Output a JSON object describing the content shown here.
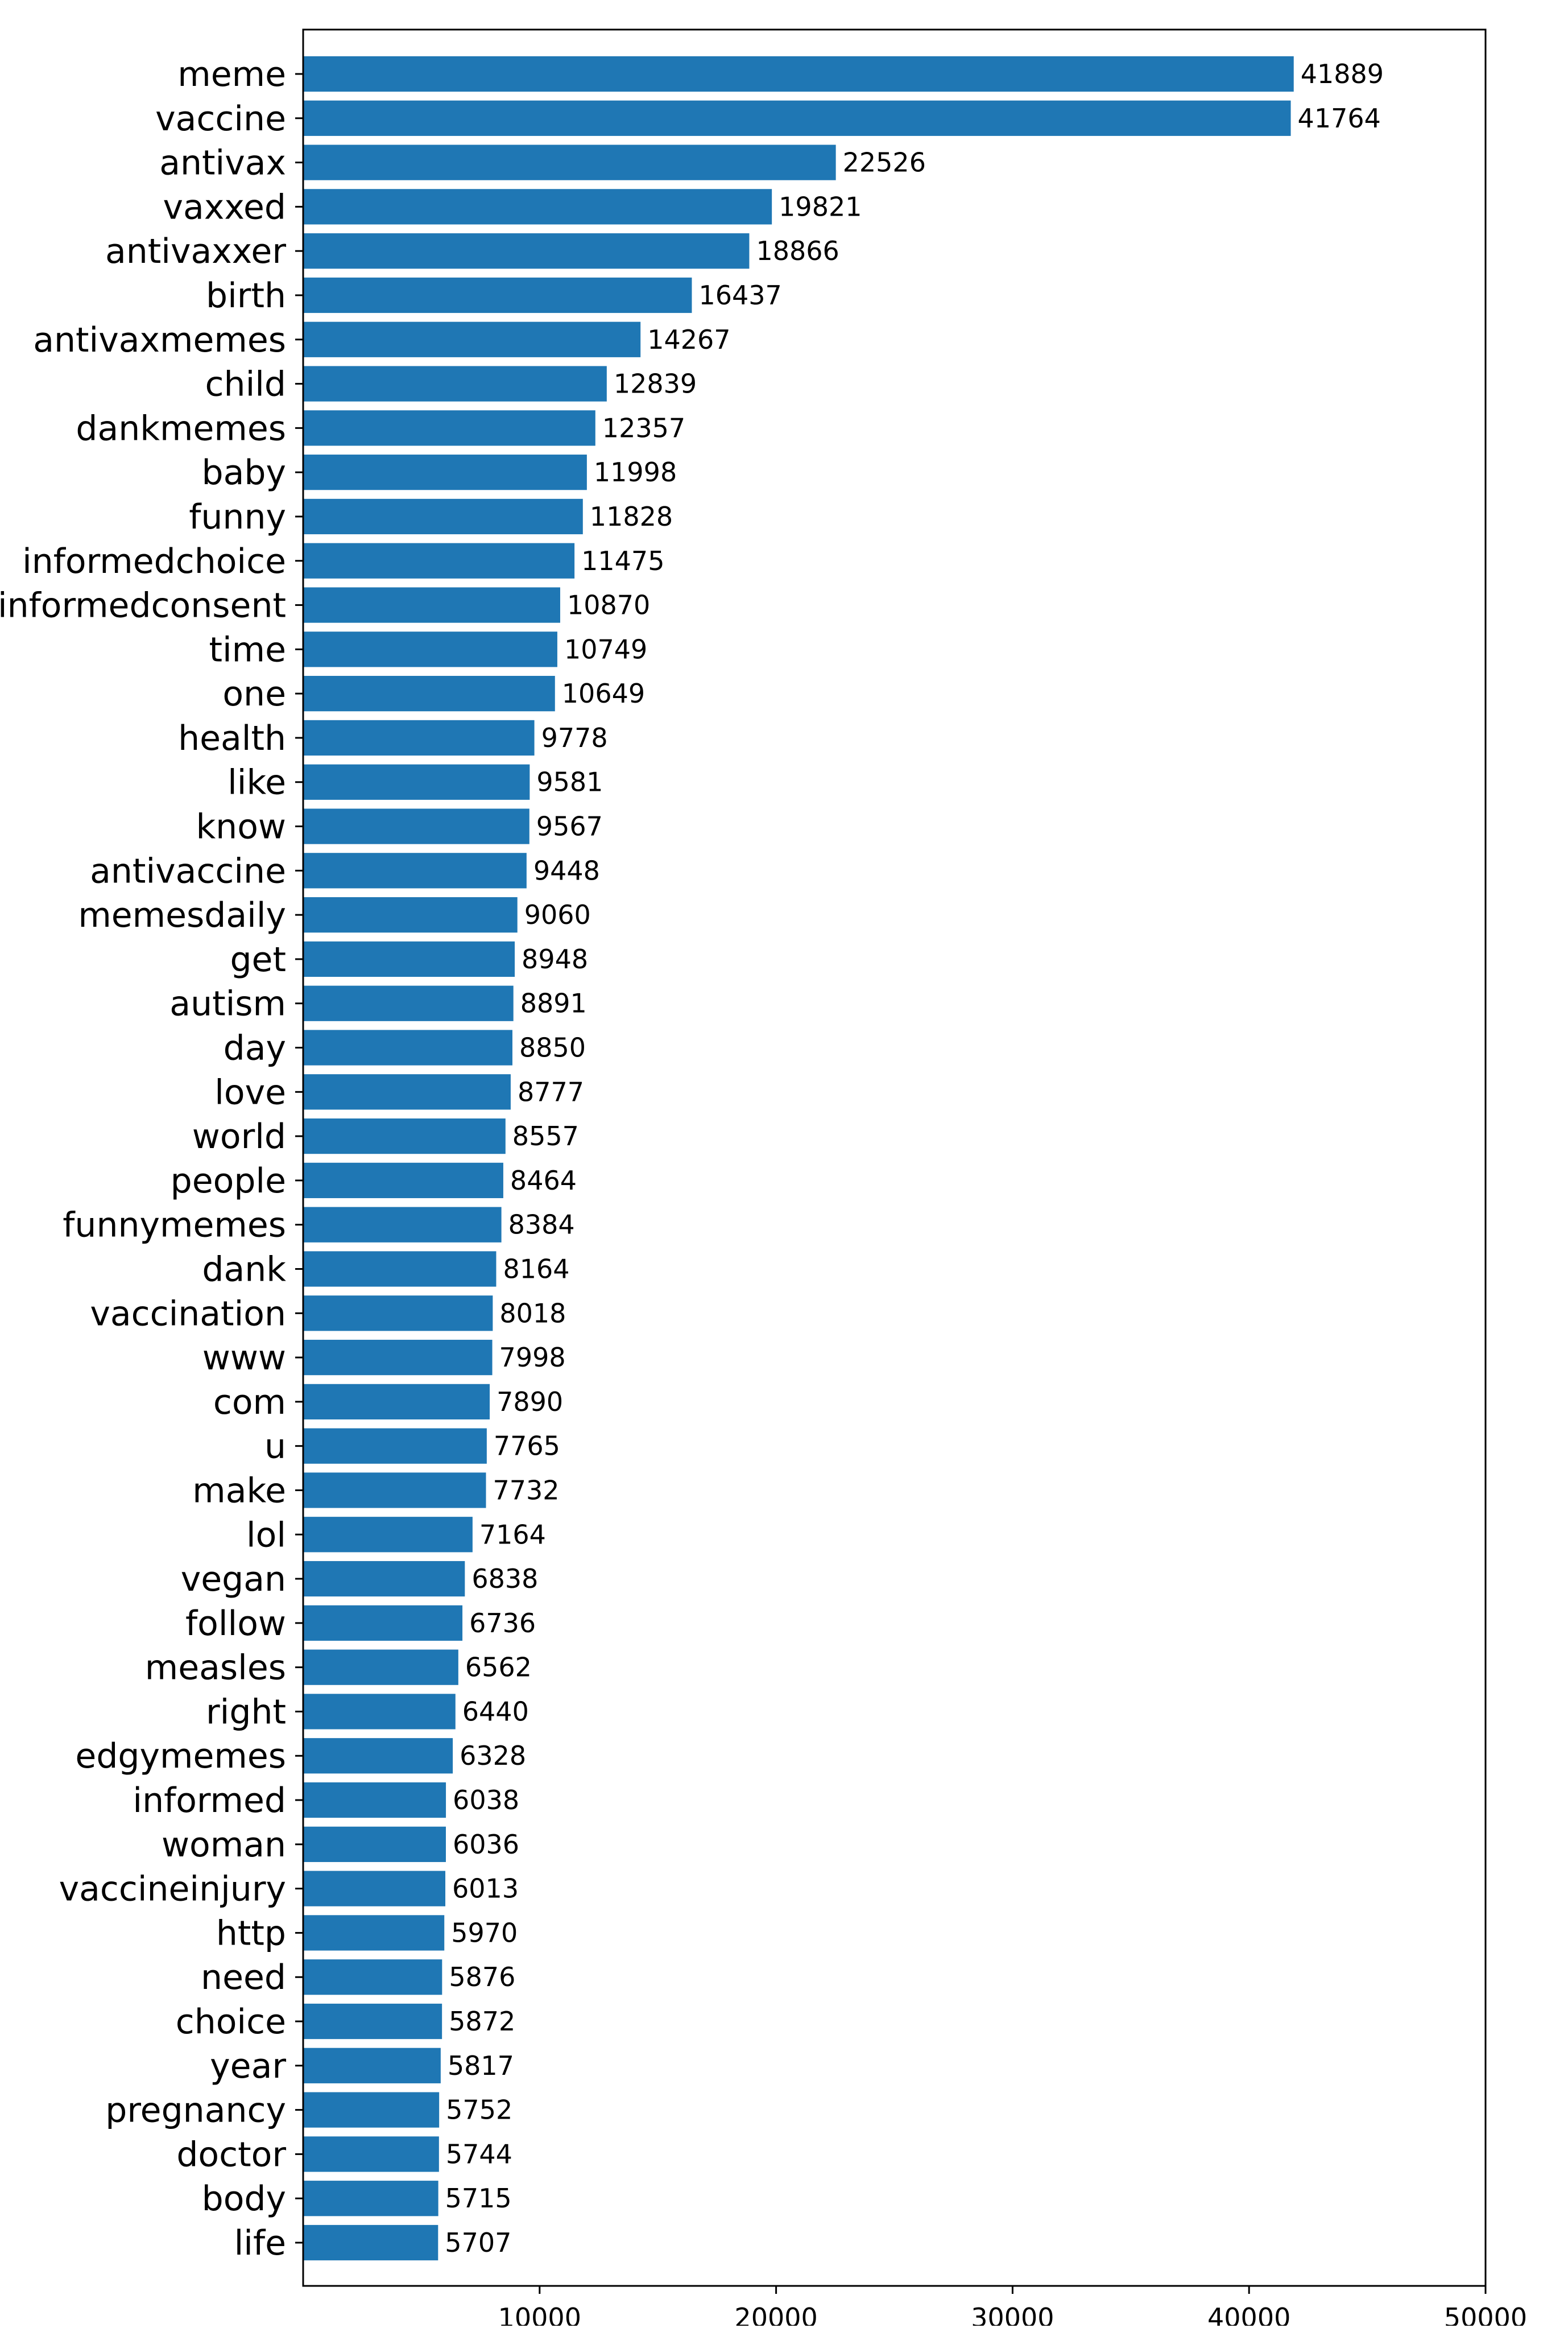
{
  "chart_data": {
    "type": "bar",
    "orientation": "horizontal",
    "categories": [
      "meme",
      "vaccine",
      "antivax",
      "vaxxed",
      "antivaxxer",
      "birth",
      "antivaxmemes",
      "child",
      "dankmemes",
      "baby",
      "funny",
      "informedchoice",
      "informedconsent",
      "time",
      "one",
      "health",
      "like",
      "know",
      "antivaccine",
      "memesdaily",
      "get",
      "autism",
      "day",
      "love",
      "world",
      "people",
      "funnymemes",
      "dank",
      "vaccination",
      "www",
      "com",
      "u",
      "make",
      "lol",
      "vegan",
      "follow",
      "measles",
      "right",
      "edgymemes",
      "informed",
      "woman",
      "vaccineinjury",
      "http",
      "need",
      "choice",
      "year",
      "pregnancy",
      "doctor",
      "body",
      "life"
    ],
    "values": [
      41889,
      41764,
      22526,
      19821,
      18866,
      16437,
      14267,
      12839,
      12357,
      11998,
      11828,
      11475,
      10870,
      10749,
      10649,
      9778,
      9581,
      9567,
      9448,
      9060,
      8948,
      8891,
      8850,
      8777,
      8557,
      8464,
      8384,
      8164,
      8018,
      7998,
      7890,
      7765,
      7732,
      7164,
      6838,
      6736,
      6562,
      6440,
      6328,
      6038,
      6036,
      6013,
      5970,
      5876,
      5872,
      5817,
      5752,
      5744,
      5715,
      5707
    ],
    "xlim": [
      0,
      50000
    ],
    "xticks": [
      10000,
      20000,
      30000,
      40000,
      50000
    ],
    "title": "",
    "xlabel": "",
    "ylabel": "",
    "bar_color": "#1f77b4",
    "data_labels": true,
    "grid": false,
    "legend": false
  }
}
